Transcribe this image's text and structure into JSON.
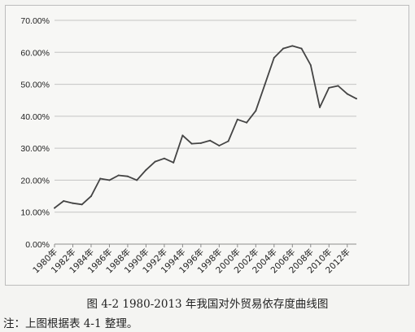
{
  "chart_data": {
    "type": "line",
    "title": "",
    "xlabel": "",
    "ylabel": "",
    "ylim": [
      0,
      70
    ],
    "yticks": [
      "0.00%",
      "10.00%",
      "20.00%",
      "30.00%",
      "40.00%",
      "50.00%",
      "60.00%",
      "70.00%"
    ],
    "grid": true,
    "legend": "none",
    "line_color": "#444444",
    "categories": [
      "1980年",
      "1981年",
      "1982年",
      "1983年",
      "1984年",
      "1985年",
      "1986年",
      "1987年",
      "1988年",
      "1989年",
      "1990年",
      "1991年",
      "1992年",
      "1993年",
      "1994年",
      "1995年",
      "1996年",
      "1997年",
      "1998年",
      "1999年",
      "2000年",
      "2001年",
      "2002年",
      "2003年",
      "2004年",
      "2005年",
      "2006年",
      "2007年",
      "2008年",
      "2009年",
      "2010年",
      "2011年",
      "2012年",
      "2013年"
    ],
    "tick_labels": [
      "1980年",
      "1982年",
      "1984年",
      "1986年",
      "1988年",
      "1990年",
      "1992年",
      "1994年",
      "1996年",
      "1998年",
      "2000年",
      "2002年",
      "2004年",
      "2006年",
      "2008年",
      "2010年",
      "2012年"
    ],
    "values": [
      11.3,
      13.5,
      12.8,
      12.4,
      15.0,
      20.5,
      20.0,
      21.5,
      21.2,
      20.0,
      23.2,
      25.8,
      26.8,
      25.5,
      34.0,
      31.4,
      31.6,
      32.4,
      30.8,
      32.2,
      39.0,
      38.0,
      41.7,
      50.0,
      58.3,
      61.2,
      62.0,
      61.2,
      56.0,
      42.8,
      48.9,
      49.5,
      47.0,
      45.5
    ]
  },
  "caption": "图 4-2 1980-2013 年我国对外贸易依存度曲线图",
  "note": "注：上图根据表 4-1 整理。"
}
